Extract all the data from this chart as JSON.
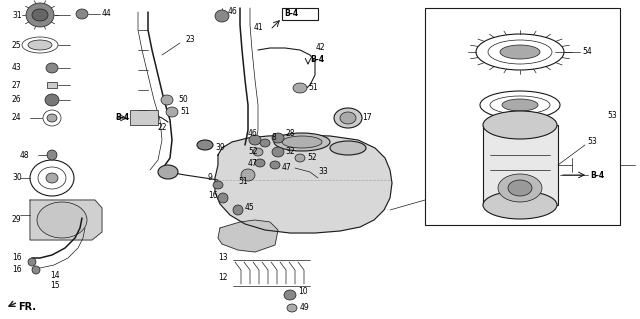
{
  "bg_color": "#ffffff",
  "line_color": "#1a1a1a",
  "figsize": [
    6.4,
    3.19
  ],
  "dpi": 100,
  "pn_size": 5.5,
  "lw_thin": 0.5,
  "lw_med": 0.8,
  "lw_thick": 1.1
}
